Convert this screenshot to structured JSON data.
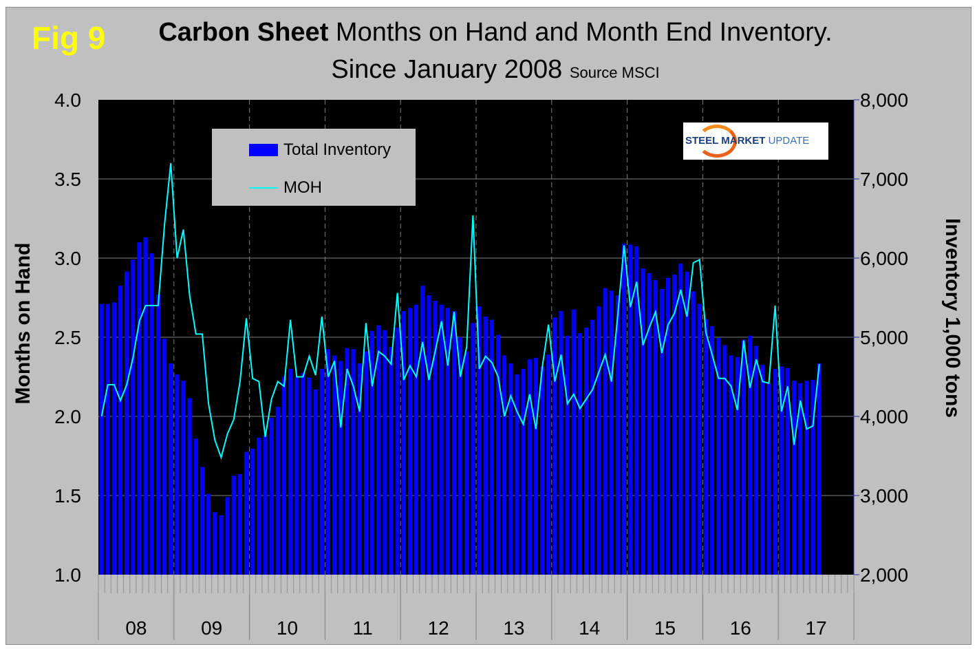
{
  "figure_label": "Fig 9",
  "title_bold": "Carbon Sheet",
  "title_rest": " Months on Hand and Month End Inventory.",
  "title_line2": "Since January 2008 ",
  "source": "Source MSCI",
  "logo_text": {
    "bold": "STEEL MARKET ",
    "light": "UPDATE"
  },
  "colors": {
    "bars": "#0000ff",
    "line": "#00ffff",
    "plot_bg": "#000000",
    "frame": "#c0c0c0",
    "fig_label": "#ffff00"
  },
  "chart_data": {
    "type": "bar+line",
    "xlabel": "",
    "ylabel_left": "Months on Hand",
    "ylabel_right": "Inventory 1,000 tons",
    "ylim_left": [
      1.0,
      4.0
    ],
    "ylim_right": [
      2000,
      8000
    ],
    "yticks_left": [
      "1.0",
      "1.5",
      "2.0",
      "2.5",
      "3.0",
      "3.5",
      "4.0"
    ],
    "yticks_right": [
      "2,000",
      "3,000",
      "4,000",
      "5,000",
      "6,000",
      "7,000",
      "8,000"
    ],
    "x_year_labels": [
      "08",
      "09",
      "10",
      "11",
      "12",
      "13",
      "14",
      "15",
      "16",
      "17"
    ],
    "x_start": "2008-01",
    "x_months_on_axis": 120,
    "grid": true,
    "legend": {
      "position": "top-left",
      "entries": [
        "Total Inventory",
        "MOH"
      ]
    },
    "series": [
      {
        "name": "Total Inventory",
        "type": "bar",
        "axis": "right",
        "values": [
          5420,
          5420,
          5440,
          5650,
          5830,
          5980,
          6200,
          6260,
          6060,
          5540,
          4980,
          4670,
          4530,
          4450,
          4230,
          3720,
          3360,
          3020,
          2790,
          2750,
          2980,
          3250,
          3270,
          3550,
          3590,
          3730,
          3760,
          3980,
          4120,
          4500,
          4600,
          4490,
          4550,
          4490,
          4340,
          4600,
          4850,
          4770,
          4700,
          4860,
          4850,
          4670,
          4820,
          5080,
          5150,
          5090,
          4880,
          5120,
          5330,
          5370,
          5410,
          5650,
          5530,
          5460,
          5410,
          5370,
          5330,
          5000,
          4820,
          5180,
          5390,
          5260,
          5220,
          5030,
          4770,
          4670,
          4530,
          4600,
          4720,
          4740,
          4630,
          4780,
          5250,
          5330,
          5020,
          5350,
          5050,
          5120,
          5220,
          5390,
          5620,
          5590,
          5530,
          6180,
          6170,
          6150,
          5870,
          5810,
          5720,
          5610,
          5750,
          5790,
          5930,
          5830,
          5580,
          5420,
          5230,
          5140,
          4990,
          4900,
          4770,
          4750,
          4970,
          5020,
          4890,
          4650,
          4420,
          4600,
          4630,
          4610,
          4450,
          4420,
          4450,
          4460,
          4670
        ]
      },
      {
        "name": "MOH",
        "type": "line",
        "axis": "left",
        "values": [
          2.0,
          2.2,
          2.2,
          2.1,
          2.2,
          2.37,
          2.6,
          2.7,
          2.7,
          2.7,
          3.21,
          3.6,
          3.0,
          3.18,
          2.76,
          2.52,
          2.52,
          2.08,
          1.85,
          1.74,
          1.89,
          1.98,
          2.22,
          2.62,
          2.24,
          2.22,
          1.87,
          2.11,
          2.22,
          2.19,
          2.61,
          2.25,
          2.25,
          2.38,
          2.26,
          2.63,
          2.25,
          2.35,
          1.93,
          2.3,
          2.19,
          2.03,
          2.59,
          2.19,
          2.41,
          2.38,
          2.33,
          2.78,
          2.23,
          2.32,
          2.25,
          2.47,
          2.23,
          2.41,
          2.6,
          2.32,
          2.66,
          2.25,
          2.44,
          3.27,
          2.3,
          2.38,
          2.34,
          2.25,
          2.0,
          2.13,
          2.03,
          1.95,
          2.14,
          1.92,
          2.31,
          2.58,
          2.22,
          2.39,
          2.08,
          2.14,
          2.05,
          2.11,
          2.17,
          2.28,
          2.39,
          2.22,
          2.64,
          3.08,
          2.69,
          2.85,
          2.45,
          2.56,
          2.66,
          2.4,
          2.58,
          2.65,
          2.8,
          2.63,
          2.97,
          2.99,
          2.53,
          2.39,
          2.24,
          2.24,
          2.19,
          2.04,
          2.48,
          2.18,
          2.36,
          2.22,
          2.21,
          2.7,
          2.03,
          2.19,
          1.82,
          2.1,
          1.92,
          1.94,
          2.33
        ]
      }
    ]
  }
}
